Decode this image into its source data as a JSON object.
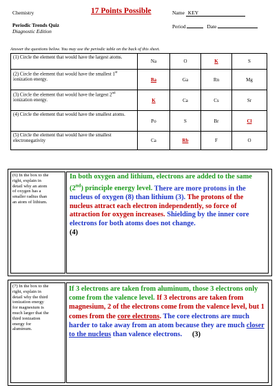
{
  "header": {
    "subject": "Chemistry",
    "points": "17 Points Possible",
    "name_label": "Name",
    "name_value": "KEY",
    "quiz_title": "Periodic Trends Quiz",
    "edition": "Diagnostic Edition",
    "period_label": "Period",
    "date_label": "Date"
  },
  "instructions": "Answer the questions below.  You may use the periodic table on the back of this sheet.",
  "questions": [
    {
      "q": "(1)  Circle the element that would have the largest atoms.",
      "choices": [
        "Na",
        "O",
        "K",
        "S"
      ],
      "answer_index": 2
    },
    {
      "q_pre": "(2)  Circle the element that would have the smallest 1",
      "sup": "st",
      "q_post": " ionization energy.",
      "choices": [
        "Ba",
        "Ga",
        "Rn",
        "Mg"
      ],
      "answer_index": 0
    },
    {
      "q_pre": "(3)  Circle the element that would have the largest 2",
      "sup": "nd",
      "q_post": " ionization energy.",
      "choices": [
        "K",
        "Ca",
        "Cs",
        "Sr"
      ],
      "answer_index": 0
    },
    {
      "q": "(4)  Circle the element that would have the smallest atoms.",
      "choices": [
        "Po",
        "S",
        "Br",
        "Cl"
      ],
      "answer_index": 3
    },
    {
      "q": "(5)  Circle the element that would have the smallest electronegativity",
      "choices": [
        "Ca",
        "Rb",
        "F",
        "O"
      ],
      "answer_index": 1
    }
  ],
  "q6": {
    "question": "(6)  In the box to the right, explain in detail why an atom of oxygen has a smaller radius than an atom of lithium.",
    "a1": "In both oxygen and lithium, electrons are added to the same (2",
    "a1_sup": "nd",
    "a1b": ") principle energy level.",
    "a2": "There are more protons in the nucleus of oxygen (8) than lithium (3).",
    "a3": "  The protons of the nucleus attract each electron independently, so force of attraction for oxygen increases.",
    "a4": "  Shielding by the inner core electrons for both atoms does not change.",
    "points": "(4)"
  },
  "q7": {
    "question": "(7)  In the box to the right, explain in detail why the third ionization energy for magnesium is much larger that the third ionization energy for aluminum.",
    "a1": "If 3 electrons are taken from aluminum, those 3 electrons only come from the valence level.",
    "a2": "If 3 electrons are taken from magnesium, 2 of the electrons come from the valence level, but 1 comes from the ",
    "a2_ul": "core electrons",
    "a2_end": ".",
    "a3": "The core electrons are much harder to take away from an atom because they are much ",
    "a3_ul": "closer to the nucleus",
    "a3_end": " than valence electrons.",
    "points": "(3)"
  }
}
